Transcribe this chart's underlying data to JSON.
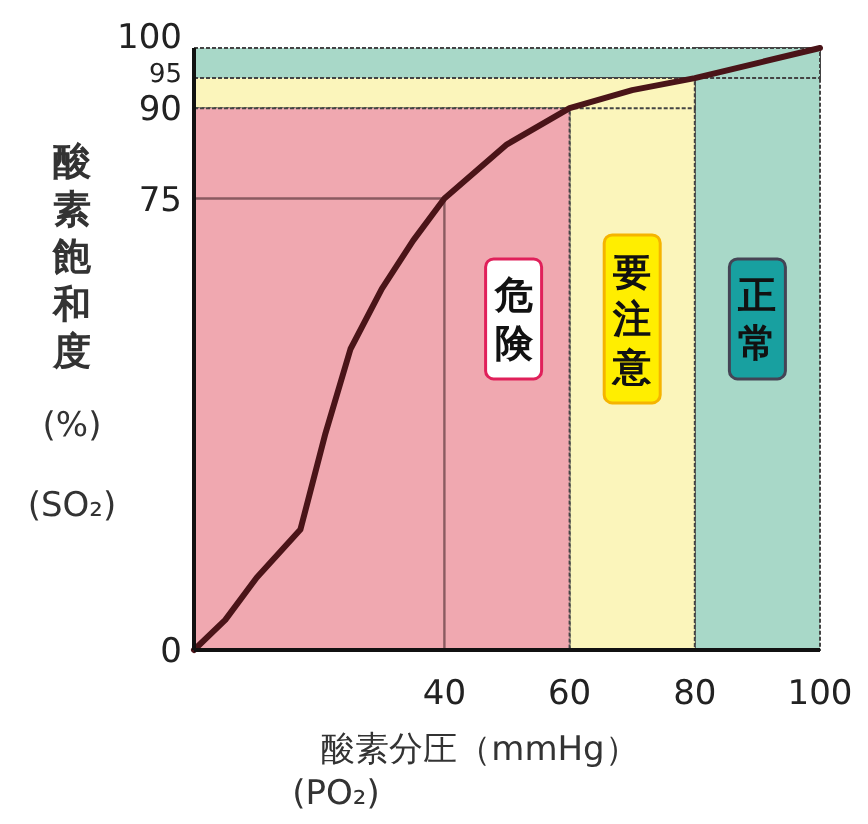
{
  "chart_data": {
    "type": "line",
    "xlabel": "酸素分圧（mmHg） (PO₂)",
    "ylabel": "酸素飽和度 (%) (SO₂)",
    "x": [
      0,
      5,
      10,
      17,
      21,
      25,
      30,
      35,
      40,
      50,
      60,
      70,
      80,
      90,
      100
    ],
    "series": [
      {
        "color": "#4a1418",
        "values": [
          0,
          5,
          12,
          20,
          36,
          50,
          60,
          68,
          75,
          84,
          90,
          93,
          95,
          97.5,
          100
        ]
      }
    ],
    "xlim": [
      0,
      100
    ],
    "ylim": [
      0,
      100
    ],
    "xticks": [
      40,
      60,
      80,
      100
    ],
    "yticks": [
      0,
      75,
      90,
      95,
      100
    ],
    "bands": [
      {
        "axis": "x",
        "from": 80,
        "to": 100,
        "label": "正常",
        "color": "#a8d8c8"
      },
      {
        "axis": "y",
        "from": 95,
        "to": 100,
        "color": "#a8d8c8"
      },
      {
        "axis": "x",
        "from": 60,
        "to": 80,
        "label": "要注意",
        "color": "#fbf5bb"
      },
      {
        "axis": "y",
        "from": 90,
        "to": 95,
        "color": "#fbf5bb"
      },
      {
        "axis": "x",
        "from": 0,
        "to": 60,
        "label": "危険",
        "color": "#f0a8b0"
      }
    ],
    "ref_lines": [
      {
        "axis": "y",
        "value": 75,
        "color": "#8a5a60"
      },
      {
        "axis": "x",
        "value": 40,
        "color": "#8a5a60"
      }
    ],
    "grid": false,
    "marker": "none",
    "line_style": "solid"
  }
}
